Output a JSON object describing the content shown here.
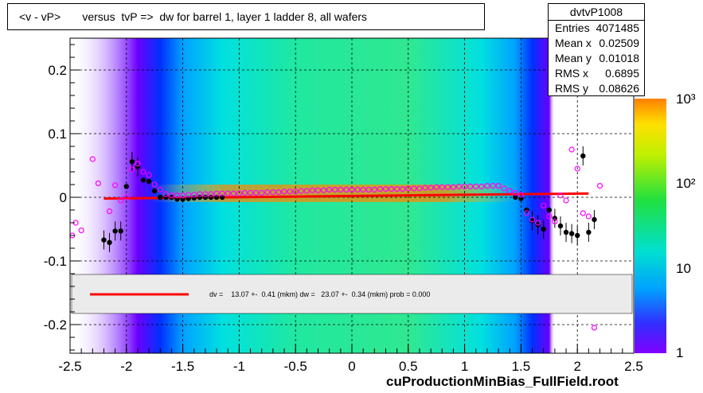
{
  "title": "<v - vP>       versus  tvP =>  dw for barrel 1, layer 1 ladder 8, all wafers",
  "footer": "cuProductionMinBias_FullField.root",
  "stats": {
    "name": "dvtvP1008",
    "rows": [
      {
        "label": "Entries",
        "value": "4071485"
      },
      {
        "label": "Mean x",
        "value": "0.02509"
      },
      {
        "label": "Mean y",
        "value": "0.01018"
      },
      {
        "label": "RMS x",
        "value": "0.6895"
      },
      {
        "label": "RMS y",
        "value": "0.08626"
      }
    ]
  },
  "chart_data": {
    "type": "heatmap",
    "xlim": [
      -2.5,
      2.5
    ],
    "ylim": [
      -0.245,
      0.25
    ],
    "x_ticks": [
      -2.5,
      -2,
      -1.5,
      -1,
      -0.5,
      0,
      0.5,
      1,
      1.5,
      2,
      2.5
    ],
    "x_tick_labels": [
      "-2.5",
      "-2",
      "-1.5",
      "-1",
      "-0.5",
      "0",
      "0.5",
      "1",
      "1.5",
      "2",
      "2.5"
    ],
    "y_ticks": [
      -0.2,
      -0.1,
      0,
      0.1,
      0.2
    ],
    "y_tick_labels": [
      "-0.2",
      "-0.1",
      "0",
      "0.1",
      "0.2"
    ],
    "grid": true,
    "colorbar": {
      "scale": "log",
      "labels": [
        "1",
        "10",
        "10²",
        "10³"
      ]
    },
    "fit_legend": "dv =    13.07 +-  0.41 (mkm) dw =   23.07 +-  0.34 (mkm) prob = 0.000",
    "black_points": {
      "x": [
        -2.2,
        -2.15,
        -2.1,
        -2.05,
        -2.0,
        -1.95,
        -1.9,
        -1.85,
        -1.8,
        -1.75,
        -1.7,
        -1.65,
        -1.6,
        -1.55,
        -1.5,
        -1.45,
        -1.4,
        -1.35,
        -1.3,
        -1.25,
        -1.2,
        -1.15,
        1.45,
        1.5,
        1.55,
        1.6,
        1.65,
        1.7,
        1.75,
        1.8,
        1.85,
        1.9,
        1.95,
        2.0,
        2.05,
        2.1,
        2.15
      ],
      "y": [
        -0.067,
        -0.071,
        -0.053,
        -0.053,
        0.017,
        0.056,
        0.048,
        0.027,
        0.025,
        0.01,
        0.0,
        0.0,
        0.0,
        -0.003,
        -0.003,
        -0.002,
        -0.001,
        0.0,
        0.0,
        0.0,
        0.0,
        0.0,
        0.0,
        -0.002,
        -0.02,
        -0.037,
        -0.043,
        -0.05,
        -0.02,
        -0.033,
        -0.045,
        -0.055,
        -0.057,
        -0.06,
        0.065,
        -0.055,
        -0.035
      ]
    },
    "magenta_points": {
      "x": [
        -2.48,
        -2.45,
        -2.4,
        -2.3,
        -2.25,
        -2.15,
        -2.1,
        -2.05,
        -2.0,
        -1.95,
        -1.9,
        -1.85,
        -1.8,
        -1.75,
        -1.7,
        -1.65,
        -1.6,
        -1.55,
        -1.5,
        -1.45,
        -1.4,
        -1.35,
        -1.3,
        -1.25,
        -1.2,
        -1.15,
        -1.1,
        -1.05,
        -1.0,
        -0.95,
        -0.9,
        -0.85,
        -0.8,
        -0.75,
        -0.7,
        -0.65,
        -0.6,
        -0.55,
        -0.5,
        -0.45,
        -0.4,
        -0.35,
        -0.3,
        -0.25,
        -0.2,
        -0.15,
        -0.1,
        -0.05,
        0.0,
        0.05,
        0.1,
        0.15,
        0.2,
        0.25,
        0.3,
        0.35,
        0.4,
        0.45,
        0.5,
        0.55,
        0.6,
        0.65,
        0.7,
        0.75,
        0.8,
        0.85,
        0.9,
        0.95,
        1.0,
        1.05,
        1.1,
        1.15,
        1.2,
        1.25,
        1.3,
        1.35,
        1.4,
        1.45,
        1.5,
        1.55,
        1.6,
        1.65,
        1.7,
        1.75,
        1.8,
        1.85,
        1.9,
        1.95,
        2.0,
        2.05,
        2.1,
        2.15,
        2.2
      ],
      "y": [
        -0.06,
        -0.04,
        -0.052,
        0.06,
        0.022,
        -0.022,
        0.019,
        -0.005,
        0.0,
        0.044,
        0.053,
        0.04,
        0.035,
        0.02,
        0.012,
        0.005,
        0.003,
        0.003,
        0.003,
        0.004,
        0.004,
        0.005,
        0.005,
        0.005,
        0.006,
        0.006,
        0.006,
        0.006,
        0.006,
        0.007,
        0.007,
        0.007,
        0.007,
        0.008,
        0.008,
        0.008,
        0.009,
        0.009,
        0.009,
        0.01,
        0.01,
        0.011,
        0.011,
        0.011,
        0.012,
        0.012,
        0.012,
        0.012,
        0.012,
        0.012,
        0.012,
        0.012,
        0.012,
        0.013,
        0.013,
        0.013,
        0.013,
        0.013,
        0.014,
        0.014,
        0.014,
        0.015,
        0.015,
        0.016,
        0.016,
        0.016,
        0.016,
        0.017,
        0.017,
        0.017,
        0.017,
        0.017,
        0.018,
        0.018,
        0.018,
        0.014,
        0.01,
        0.007,
        0.004,
        -0.025,
        -0.035,
        -0.04,
        -0.013,
        -0.03,
        -0.038,
        0.003,
        -0.005,
        0.075,
        0.045,
        -0.025,
        -0.03,
        -0.205,
        0.018
      ]
    },
    "fit_line": {
      "x": [
        -2.2,
        2.1
      ],
      "y": [
        -0.002,
        0.006
      ]
    }
  }
}
